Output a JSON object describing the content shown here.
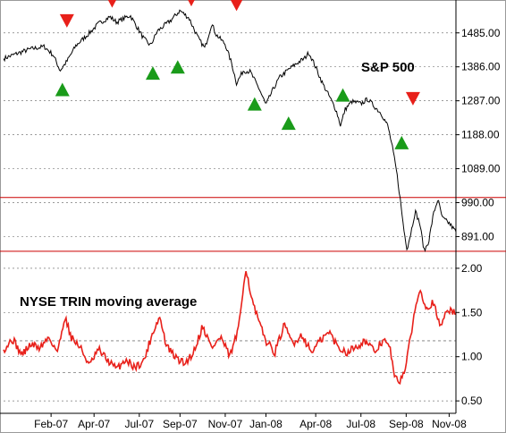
{
  "chart_data": [
    {
      "type": "line",
      "title": "S&P 500",
      "ylim": [
        840,
        1560
      ],
      "y_ticks": [
        891.0,
        990.0,
        1089.0,
        1188.0,
        1287.0,
        1386.0,
        1485.0
      ],
      "y_tick_labels": [
        "891.00",
        "990.00",
        "1089.00",
        "1188.00",
        "1287.00",
        "1386.00",
        "1485.00"
      ],
      "reference_lines": [
        1005,
        848
      ],
      "reference_line_color": "#cc0000",
      "line_color": "#000000",
      "anchors": [
        {
          "t": 0,
          "v": 1410
        },
        {
          "t": 0.03,
          "v": 1425
        },
        {
          "t": 0.06,
          "v": 1438
        },
        {
          "t": 0.09,
          "v": 1445
        },
        {
          "t": 0.11,
          "v": 1420
        },
        {
          "t": 0.125,
          "v": 1375
        },
        {
          "t": 0.14,
          "v": 1402
        },
        {
          "t": 0.16,
          "v": 1448
        },
        {
          "t": 0.19,
          "v": 1485
        },
        {
          "t": 0.21,
          "v": 1512
        },
        {
          "t": 0.235,
          "v": 1532
        },
        {
          "t": 0.25,
          "v": 1516
        },
        {
          "t": 0.27,
          "v": 1530
        },
        {
          "t": 0.28,
          "v": 1536
        },
        {
          "t": 0.295,
          "v": 1502
        },
        {
          "t": 0.31,
          "v": 1468
        },
        {
          "t": 0.325,
          "v": 1448
        },
        {
          "t": 0.34,
          "v": 1490
        },
        {
          "t": 0.355,
          "v": 1506
        },
        {
          "t": 0.37,
          "v": 1522
        },
        {
          "t": 0.39,
          "v": 1550
        },
        {
          "t": 0.41,
          "v": 1528
        },
        {
          "t": 0.43,
          "v": 1470
        },
        {
          "t": 0.445,
          "v": 1440
        },
        {
          "t": 0.46,
          "v": 1512
        },
        {
          "t": 0.47,
          "v": 1480
        },
        {
          "t": 0.49,
          "v": 1452
        },
        {
          "t": 0.505,
          "v": 1392
        },
        {
          "t": 0.515,
          "v": 1338
        },
        {
          "t": 0.53,
          "v": 1375
        },
        {
          "t": 0.545,
          "v": 1372
        },
        {
          "t": 0.565,
          "v": 1322
        },
        {
          "t": 0.58,
          "v": 1275
        },
        {
          "t": 0.595,
          "v": 1318
        },
        {
          "t": 0.61,
          "v": 1355
        },
        {
          "t": 0.63,
          "v": 1378
        },
        {
          "t": 0.65,
          "v": 1398
        },
        {
          "t": 0.665,
          "v": 1410
        },
        {
          "t": 0.675,
          "v": 1428
        },
        {
          "t": 0.69,
          "v": 1385
        },
        {
          "t": 0.705,
          "v": 1338
        },
        {
          "t": 0.72,
          "v": 1300
        },
        {
          "t": 0.735,
          "v": 1260
        },
        {
          "t": 0.745,
          "v": 1215
        },
        {
          "t": 0.755,
          "v": 1262
        },
        {
          "t": 0.77,
          "v": 1285
        },
        {
          "t": 0.79,
          "v": 1278
        },
        {
          "t": 0.805,
          "v": 1292
        },
        {
          "t": 0.82,
          "v": 1270
        },
        {
          "t": 0.835,
          "v": 1250
        },
        {
          "t": 0.85,
          "v": 1212
        },
        {
          "t": 0.86,
          "v": 1148
        },
        {
          "t": 0.87,
          "v": 1070
        },
        {
          "t": 0.877,
          "v": 998
        },
        {
          "t": 0.885,
          "v": 910
        },
        {
          "t": 0.892,
          "v": 855
        },
        {
          "t": 0.9,
          "v": 900
        },
        {
          "t": 0.91,
          "v": 965
        },
        {
          "t": 0.92,
          "v": 930
        },
        {
          "t": 0.93,
          "v": 848
        },
        {
          "t": 0.94,
          "v": 878
        },
        {
          "t": 0.95,
          "v": 955
        },
        {
          "t": 0.96,
          "v": 1000
        },
        {
          "t": 0.97,
          "v": 945
        },
        {
          "t": 0.985,
          "v": 930
        },
        {
          "t": 1.0,
          "v": 905
        }
      ],
      "signals": [
        {
          "direction": "down",
          "t": 0.14,
          "v": 1520,
          "color": "#e8201a"
        },
        {
          "direction": "down",
          "t": 0.24,
          "v": 1578,
          "color": "#e8201a"
        },
        {
          "direction": "down",
          "t": 0.415,
          "v": 1582,
          "color": "#e8201a"
        },
        {
          "direction": "down",
          "t": 0.515,
          "v": 1568,
          "color": "#e8201a"
        },
        {
          "direction": "down",
          "t": 0.905,
          "v": 1293,
          "color": "#e8201a"
        },
        {
          "direction": "up",
          "t": 0.13,
          "v": 1320,
          "color": "#1a9b1a"
        },
        {
          "direction": "up",
          "t": 0.33,
          "v": 1368,
          "color": "#1a9b1a"
        },
        {
          "direction": "up",
          "t": 0.385,
          "v": 1386,
          "color": "#1a9b1a"
        },
        {
          "direction": "up",
          "t": 0.555,
          "v": 1278,
          "color": "#1a9b1a"
        },
        {
          "direction": "up",
          "t": 0.63,
          "v": 1222,
          "color": "#1a9b1a"
        },
        {
          "direction": "up",
          "t": 0.75,
          "v": 1304,
          "color": "#1a9b1a"
        },
        {
          "direction": "up",
          "t": 0.88,
          "v": 1165,
          "color": "#1a9b1a"
        }
      ]
    },
    {
      "type": "line",
      "title": "NYSE TRIN moving average",
      "ylim": [
        0.4,
        2.1
      ],
      "y_ticks": [
        0.5,
        1.0,
        1.5,
        2.0
      ],
      "y_tick_labels": [
        "0.50",
        "1.00",
        "1.50",
        "2.00"
      ],
      "reference_lines": [
        1.18,
        0.82
      ],
      "line_color": "#e8201a",
      "anchors": [
        {
          "t": 0,
          "v": 1.08
        },
        {
          "t": 0.02,
          "v": 1.2
        },
        {
          "t": 0.04,
          "v": 1.02
        },
        {
          "t": 0.06,
          "v": 1.14
        },
        {
          "t": 0.08,
          "v": 1.1
        },
        {
          "t": 0.1,
          "v": 1.22
        },
        {
          "t": 0.12,
          "v": 1.05
        },
        {
          "t": 0.135,
          "v": 1.46
        },
        {
          "t": 0.15,
          "v": 1.22
        },
        {
          "t": 0.17,
          "v": 1.1
        },
        {
          "t": 0.19,
          "v": 0.9
        },
        {
          "t": 0.21,
          "v": 1.08
        },
        {
          "t": 0.23,
          "v": 0.96
        },
        {
          "t": 0.25,
          "v": 0.86
        },
        {
          "t": 0.27,
          "v": 0.97
        },
        {
          "t": 0.29,
          "v": 0.88
        },
        {
          "t": 0.31,
          "v": 0.95
        },
        {
          "t": 0.33,
          "v": 1.28
        },
        {
          "t": 0.345,
          "v": 1.45
        },
        {
          "t": 0.36,
          "v": 1.12
        },
        {
          "t": 0.38,
          "v": 0.99
        },
        {
          "t": 0.4,
          "v": 0.92
        },
        {
          "t": 0.42,
          "v": 1.05
        },
        {
          "t": 0.44,
          "v": 1.35
        },
        {
          "t": 0.46,
          "v": 1.1
        },
        {
          "t": 0.48,
          "v": 1.22
        },
        {
          "t": 0.5,
          "v": 1.0
        },
        {
          "t": 0.52,
          "v": 1.32
        },
        {
          "t": 0.535,
          "v": 2.02
        },
        {
          "t": 0.55,
          "v": 1.62
        },
        {
          "t": 0.565,
          "v": 1.38
        },
        {
          "t": 0.58,
          "v": 1.18
        },
        {
          "t": 0.6,
          "v": 1.05
        },
        {
          "t": 0.62,
          "v": 1.35
        },
        {
          "t": 0.64,
          "v": 1.15
        },
        {
          "t": 0.66,
          "v": 1.25
        },
        {
          "t": 0.68,
          "v": 1.05
        },
        {
          "t": 0.7,
          "v": 1.18
        },
        {
          "t": 0.72,
          "v": 1.28
        },
        {
          "t": 0.74,
          "v": 1.1
        },
        {
          "t": 0.76,
          "v": 1.05
        },
        {
          "t": 0.78,
          "v": 1.12
        },
        {
          "t": 0.8,
          "v": 1.18
        },
        {
          "t": 0.82,
          "v": 1.05
        },
        {
          "t": 0.84,
          "v": 1.2
        },
        {
          "t": 0.855,
          "v": 1.08
        },
        {
          "t": 0.865,
          "v": 0.75
        },
        {
          "t": 0.875,
          "v": 0.72
        },
        {
          "t": 0.89,
          "v": 0.9
        },
        {
          "t": 0.905,
          "v": 1.4
        },
        {
          "t": 0.92,
          "v": 1.78
        },
        {
          "t": 0.935,
          "v": 1.55
        },
        {
          "t": 0.95,
          "v": 1.62
        },
        {
          "t": 0.965,
          "v": 1.32
        },
        {
          "t": 0.98,
          "v": 1.55
        },
        {
          "t": 1.0,
          "v": 1.48
        }
      ]
    }
  ],
  "x_axis": {
    "tick_labels": [
      "Feb-07",
      "Apr-07",
      "Jul-07",
      "Sep-07",
      "Nov-07",
      "Jan-08",
      "Apr-08",
      "Jul-08",
      "Sep-08",
      "Nov-08"
    ],
    "tick_positions": [
      0.105,
      0.2,
      0.3,
      0.39,
      0.49,
      0.58,
      0.69,
      0.79,
      0.89,
      0.985
    ]
  },
  "colors": {
    "grid": "#7a7a7a",
    "axis": "#000000",
    "frame": "#9a9a9a"
  }
}
